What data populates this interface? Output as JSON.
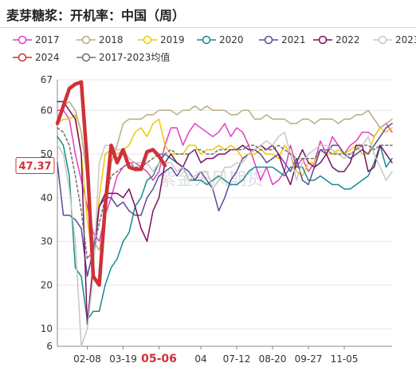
{
  "title": "麦芽糖浆：开机率：中国（周）",
  "chart_data": {
    "type": "line",
    "title": "麦芽糖浆：开机率：中国（周）",
    "xlabel": "",
    "ylabel": "",
    "ylim": [
      6,
      67
    ],
    "y_ticks": [
      6,
      10,
      20,
      30,
      40,
      50,
      60,
      67
    ],
    "x_tick_labels": [
      "02-08",
      "03-19",
      "05-06",
      "04",
      "07-12",
      "08-20",
      "09-27",
      "11-05"
    ],
    "x_tick_weeks": [
      6,
      12,
      18,
      25,
      31,
      37,
      43,
      49
    ],
    "highlight_x_label": "05-06",
    "current_value_label": "47.37",
    "current_value": 47.37,
    "grid": true,
    "legend_position": "top",
    "watermark": "紫金天风期货",
    "series": [
      {
        "name": "2017",
        "color": "#e040c0",
        "width": 1.5,
        "dash": "",
        "weeks": [
          1,
          2,
          3,
          4,
          5,
          6,
          7,
          8,
          9,
          10,
          11,
          12,
          13,
          14,
          15,
          16,
          17,
          18,
          19,
          20,
          21,
          22,
          23,
          24,
          25,
          26,
          27,
          28,
          29,
          30,
          31,
          32,
          33,
          34,
          35,
          36,
          37,
          38,
          39,
          40,
          41,
          42,
          43,
          44,
          45,
          46,
          47,
          48,
          49,
          50,
          51,
          52,
          53,
          54,
          55,
          56,
          57
        ],
        "values": [
          60,
          60,
          58,
          50,
          44,
          38,
          32,
          30,
          36,
          40,
          45,
          47,
          48,
          48,
          47,
          46,
          44,
          46,
          52,
          56,
          56,
          52,
          55,
          57,
          56,
          55,
          54,
          55,
          57,
          54,
          56,
          55,
          52,
          48,
          44,
          47,
          43,
          44,
          46,
          52,
          47,
          49,
          46,
          48,
          53,
          50,
          54,
          52,
          50,
          52,
          53,
          55,
          55,
          54,
          56,
          57,
          55
        ]
      },
      {
        "name": "2018",
        "color": "#b8ab80",
        "width": 1.5,
        "dash": "",
        "weeks": [
          1,
          2,
          3,
          4,
          5,
          6,
          7,
          8,
          9,
          10,
          11,
          12,
          13,
          14,
          15,
          16,
          17,
          18,
          19,
          20,
          21,
          22,
          23,
          24,
          25,
          26,
          27,
          28,
          29,
          30,
          31,
          32,
          33,
          34,
          35,
          36,
          37,
          38,
          39,
          40,
          41,
          42,
          43,
          44,
          45,
          46,
          47,
          48,
          49,
          50,
          51,
          52,
          53,
          54,
          55,
          56,
          57
        ],
        "values": [
          58,
          61,
          62,
          60,
          55,
          44,
          30,
          28,
          35,
          48,
          52,
          57,
          58,
          58,
          58,
          59,
          59,
          60,
          60,
          60,
          59,
          60,
          60,
          61,
          60,
          61,
          60,
          60,
          60,
          59,
          59,
          60,
          60,
          58,
          58,
          59,
          58,
          58,
          58,
          57,
          57,
          58,
          58,
          57,
          58,
          58,
          58,
          57,
          58,
          58,
          59,
          59,
          60,
          58,
          56,
          57,
          58
        ]
      },
      {
        "name": "2019",
        "color": "#f0c800",
        "width": 1.5,
        "dash": "",
        "weeks": [
          1,
          2,
          3,
          4,
          5,
          6,
          7,
          8,
          9,
          10,
          11,
          12,
          13,
          14,
          15,
          16,
          17,
          18,
          19,
          20,
          21,
          22,
          23,
          24,
          25,
          26,
          27,
          28,
          29,
          30,
          31,
          32,
          33,
          34,
          35,
          36,
          37,
          38,
          39,
          40,
          41,
          42,
          43,
          44,
          45,
          46,
          47,
          48,
          49,
          50,
          51,
          52,
          53,
          54,
          55,
          56,
          57
        ],
        "values": [
          57,
          58,
          58,
          59,
          50,
          35,
          25,
          40,
          50,
          51,
          50,
          51,
          52,
          55,
          56,
          54,
          57,
          58,
          52,
          50,
          50,
          50,
          52,
          52,
          50,
          51,
          51,
          52,
          51,
          52,
          51,
          49,
          50,
          50,
          51,
          50,
          50,
          49,
          52,
          50,
          46,
          45,
          48,
          48,
          51,
          50,
          50,
          51,
          50,
          51,
          52,
          50,
          50,
          54,
          56,
          55,
          56
        ]
      },
      {
        "name": "2020",
        "color": "#188b8b",
        "width": 1.5,
        "dash": "",
        "weeks": [
          1,
          2,
          3,
          4,
          5,
          6,
          7,
          8,
          9,
          10,
          11,
          12,
          13,
          14,
          15,
          16,
          17,
          18,
          19,
          20,
          21,
          22,
          23,
          24,
          25,
          26,
          27,
          28,
          29,
          30,
          31,
          32,
          33,
          34,
          35,
          36,
          37,
          38,
          39,
          40,
          41,
          42,
          43,
          44,
          45,
          46,
          47,
          48,
          49,
          50,
          51,
          52,
          53,
          54,
          55,
          56,
          57
        ],
        "values": [
          54,
          52,
          45,
          24,
          22,
          12,
          14,
          14,
          20,
          24,
          26,
          30,
          32,
          38,
          40,
          44,
          45,
          48,
          50,
          49,
          48,
          47,
          44,
          44,
          44,
          43,
          44,
          45,
          44,
          43,
          43,
          44,
          46,
          47,
          47,
          47,
          47,
          46,
          45,
          47,
          47,
          47,
          44,
          44,
          45,
          44,
          43,
          43,
          42,
          42,
          43,
          44,
          45,
          48,
          52,
          47,
          49
        ]
      },
      {
        "name": "2021",
        "color": "#5a4a9a",
        "width": 1.5,
        "dash": "",
        "weeks": [
          1,
          2,
          3,
          4,
          5,
          6,
          7,
          8,
          9,
          10,
          11,
          12,
          13,
          14,
          15,
          16,
          17,
          18,
          19,
          20,
          21,
          22,
          23,
          24,
          25,
          26,
          27,
          28,
          29,
          30,
          31,
          32,
          33,
          34,
          35,
          36,
          37,
          38,
          39,
          40,
          41,
          42,
          43,
          44,
          45,
          46,
          47,
          48,
          49,
          50,
          51,
          52,
          53,
          54,
          55,
          56,
          57
        ],
        "values": [
          48,
          36,
          36,
          35,
          33,
          22,
          28,
          38,
          40,
          40,
          38,
          39,
          37,
          36,
          36,
          40,
          42,
          45,
          46,
          47,
          45,
          47,
          46,
          44,
          46,
          44,
          42,
          37,
          40,
          44,
          46,
          49,
          50,
          51,
          50,
          48,
          49,
          50,
          48,
          46,
          49,
          44,
          43,
          47,
          51,
          50,
          52,
          52,
          50,
          49,
          50,
          51,
          50,
          52,
          54,
          56,
          57
        ]
      },
      {
        "name": "2022",
        "color": "#7a1060",
        "width": 1.5,
        "dash": "",
        "weeks": [
          1,
          2,
          3,
          4,
          5,
          6,
          7,
          8,
          9,
          10,
          11,
          12,
          13,
          14,
          15,
          16,
          17,
          18,
          19,
          20,
          21,
          22,
          23,
          24,
          25,
          26,
          27,
          28,
          29,
          30,
          31,
          32,
          33,
          34,
          35,
          36,
          37,
          38,
          39,
          40,
          41,
          42,
          43,
          44,
          45,
          46,
          47,
          48,
          49,
          50,
          51,
          52,
          53,
          54,
          55,
          56,
          57
        ],
        "values": [
          62,
          62,
          60,
          58,
          50,
          11,
          25,
          38,
          41,
          41,
          41,
          40,
          42,
          38,
          33,
          30,
          37,
          40,
          48,
          50,
          48,
          47,
          50,
          51,
          48,
          49,
          49,
          50,
          50,
          51,
          51,
          52,
          51,
          51,
          52,
          51,
          52,
          50,
          46,
          43,
          48,
          51,
          48,
          47,
          48,
          50,
          47,
          46,
          46,
          48,
          52,
          52,
          46,
          47,
          52,
          50,
          48
        ]
      },
      {
        "name": "2023",
        "color": "#c8c8c0",
        "width": 1.5,
        "dash": "",
        "weeks": [
          1,
          2,
          3,
          4,
          5,
          6,
          7,
          8,
          9,
          10,
          11,
          12,
          13,
          14,
          15,
          16,
          17,
          18,
          19,
          20,
          21,
          22,
          23,
          24,
          25,
          26,
          27,
          28,
          29,
          30,
          31,
          32,
          33,
          34,
          35,
          36,
          37,
          38,
          39,
          40,
          41,
          42,
          43,
          44,
          45,
          46,
          47,
          48,
          49,
          50,
          51,
          52,
          53,
          54,
          55,
          56,
          57
        ],
        "values": [
          52,
          50,
          42,
          30,
          6,
          10,
          22,
          48,
          52,
          52,
          51,
          51,
          49,
          48,
          48,
          48,
          46,
          48,
          48,
          48,
          46,
          47,
          44,
          45,
          46,
          46,
          42,
          44,
          47,
          47,
          48,
          48,
          50,
          51,
          52,
          53,
          52,
          54,
          55,
          50,
          44,
          48,
          50,
          51,
          52,
          52,
          51,
          50,
          49,
          50,
          51,
          52,
          54,
          50,
          47,
          44,
          46
        ]
      },
      {
        "name": "2024",
        "color": "#d03038",
        "width": 4.5,
        "dash": "",
        "weeks": [
          1,
          2,
          3,
          4,
          5,
          6,
          7,
          8,
          9,
          10,
          11,
          12,
          13,
          14,
          15,
          16,
          17,
          18,
          19,
          20,
          21
        ],
        "values": [
          57,
          61,
          65,
          66,
          66.5,
          48,
          22,
          20,
          38,
          52,
          48,
          51,
          47,
          46.5,
          46.5,
          50.5,
          51,
          49.5,
          47.37,
          null,
          null
        ]
      },
      {
        "name": "2017-2023均值",
        "color": "#707070",
        "width": 1.5,
        "dash": "3,3",
        "weeks": [
          1,
          2,
          3,
          4,
          5,
          6,
          7,
          8,
          9,
          10,
          11,
          12,
          13,
          14,
          15,
          16,
          17,
          18,
          19,
          20,
          21,
          22,
          23,
          24,
          25,
          26,
          27,
          28,
          29,
          30,
          31,
          32,
          33,
          34,
          35,
          36,
          37,
          38,
          39,
          40,
          41,
          42,
          43,
          44,
          45,
          46,
          47,
          48,
          49,
          50,
          51,
          52,
          53,
          54,
          55,
          56,
          57
        ],
        "values": [
          56,
          55,
          52,
          45,
          37,
          26,
          28,
          34,
          40,
          45,
          46,
          47,
          48,
          47,
          47,
          48,
          49,
          50,
          50,
          51,
          50,
          50,
          50,
          51,
          51,
          50,
          50,
          51,
          51,
          51,
          51,
          51,
          52,
          52,
          51,
          51,
          51,
          52,
          51,
          50,
          49,
          49,
          49,
          49,
          51,
          51,
          50,
          50,
          50,
          50,
          51,
          52,
          52,
          51,
          52,
          52,
          52
        ]
      }
    ]
  }
}
